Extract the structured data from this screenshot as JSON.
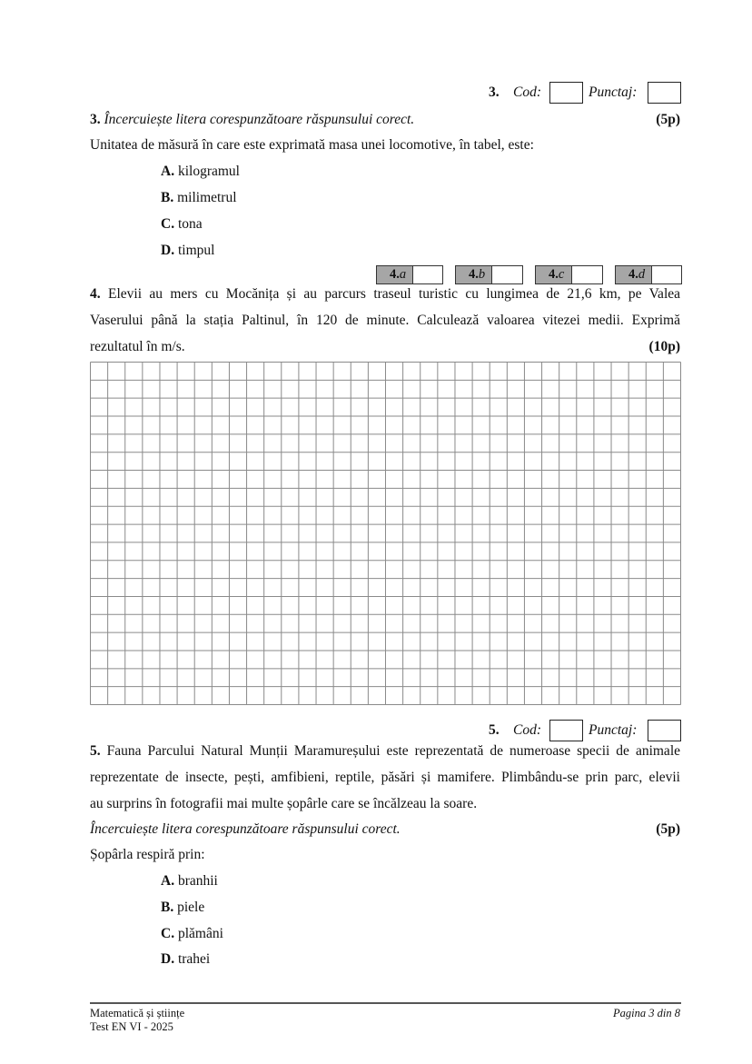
{
  "q3": {
    "header": {
      "number": "3.",
      "cod_label": "Cod:",
      "punctaj_label": "Punctaj:"
    },
    "instruction_number": "3.",
    "instruction": "Încercuiește litera corespunzătoare răspunsului corect.",
    "points": "(5p)",
    "question": "Unitatea de măsură în care este exprimată masa unei locomotive, în tabel, este:",
    "options": [
      {
        "letter": "A.",
        "text": "kilogramul"
      },
      {
        "letter": "B.",
        "text": "milimetrul"
      },
      {
        "letter": "C.",
        "text": "tona"
      },
      {
        "letter": "D.",
        "text": "timpul"
      }
    ]
  },
  "q4": {
    "subitems": [
      {
        "num": "4.",
        "letter": "a"
      },
      {
        "num": "4.",
        "letter": "b"
      },
      {
        "num": "4.",
        "letter": "c"
      },
      {
        "num": "4.",
        "letter": "d"
      }
    ],
    "number": "4.",
    "lines": [
      "Elevii au mers cu Mocănița și au parcurs traseul turistic cu lungimea de 21,6 km, pe Valea",
      "Vaserului până la stația Paltinul, în 120 de minute. Calculează valoarea vitezei medii. Exprimă",
      "rezultatul în m/s."
    ],
    "points": "(10p)",
    "grid": {
      "columns": 34,
      "rows": 19
    }
  },
  "q5": {
    "header": {
      "number": "5.",
      "cod_label": "Cod:",
      "punctaj_label": "Punctaj:"
    },
    "number": "5.",
    "lines": [
      "Fauna Parcului Natural Munții Maramureșului este reprezentată de numeroase specii de animale",
      "reprezentate de insecte, pești, amfibieni, reptile, păsări și mamifere. Plimbându-se prin parc, elevii",
      "au surprins în fotografii mai multe șopârle care se încălzeau la soare."
    ],
    "instruction": "Încercuiește litera corespunzătoare răspunsului corect.",
    "points": "(5p)",
    "question": "Șopârla respiră prin:",
    "options": [
      {
        "letter": "A.",
        "text": "branhii"
      },
      {
        "letter": "B.",
        "text": "piele"
      },
      {
        "letter": "C.",
        "text": "plămâni"
      },
      {
        "letter": "D.",
        "text": "trahei"
      }
    ]
  },
  "footer": {
    "subject": "Matematică și științe",
    "test": "Test EN VI - 2025",
    "page": "Pagina 3 din 8"
  }
}
